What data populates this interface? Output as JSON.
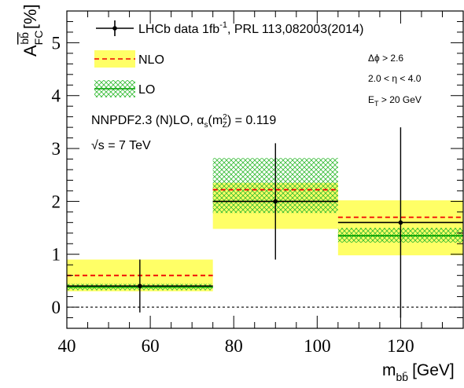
{
  "chart_data": {
    "type": "bar",
    "xlabel": "m",
    "xlabel_sub": "bb̄",
    "xlabel_unit": "[GeV]",
    "ylabel": "A",
    "ylabel_sup": "bb̄",
    "ylabel_sub": "FC",
    "ylabel_unit": "[%]",
    "xlim": [
      40,
      135
    ],
    "ylim": [
      -0.4,
      5.6
    ],
    "xticks": [
      40,
      60,
      80,
      100,
      120
    ],
    "yticks": [
      0,
      1,
      2,
      3,
      4,
      5
    ],
    "zero_line": 0,
    "bins": [
      {
        "low": 40,
        "high": 75,
        "center": 57.5,
        "data": 0.4,
        "err_low": 0.5,
        "err_high": 0.5,
        "nlo": 0.6,
        "nlo_band": [
          0.3,
          0.9
        ],
        "lo": 0.38,
        "lo_band": [
          0.32,
          0.44
        ]
      },
      {
        "low": 75,
        "high": 105,
        "center": 90,
        "data": 2.0,
        "err_low": 1.1,
        "err_high": 1.1,
        "nlo": 2.22,
        "nlo_band": [
          1.48,
          2.35
        ],
        "lo": 2.0,
        "lo_band": [
          1.78,
          2.82
        ]
      },
      {
        "low": 105,
        "high": 135,
        "center": 120,
        "data": 1.6,
        "err_low": 1.8,
        "err_high": 1.8,
        "nlo": 1.7,
        "nlo_band": [
          0.98,
          2.02
        ],
        "lo": 1.35,
        "lo_band": [
          1.22,
          1.5
        ]
      }
    ],
    "colors": {
      "data": "#000000",
      "nlo_line": "#f00000",
      "nlo_band": "#ffff66",
      "lo_line": "#00a000",
      "lo_hatch": "#33bb33"
    },
    "legend": {
      "placement": "top-left",
      "data_label": "LHCb data 1fb",
      "data_label_sup": "-1",
      "data_label_rest": ", PRL 113,082003(2014)",
      "nlo_label": "NLO",
      "lo_label": "LO"
    },
    "pdf_note": {
      "main": "NNPDF2.3 (N)LO, α",
      "sub1": "s",
      "paren": "(m",
      "sup": "2",
      "sub2": "Z",
      "rest": ") = 0.119"
    },
    "energy_note": {
      "sqrt": "√s",
      "rest": " = 7 TeV"
    },
    "cuts": {
      "dphi": "Δϕ > 2.6",
      "eta": "2.0 < η < 4.0",
      "et_main": "E",
      "et_sub": "T",
      "et_rest": " > 20 GeV"
    }
  }
}
